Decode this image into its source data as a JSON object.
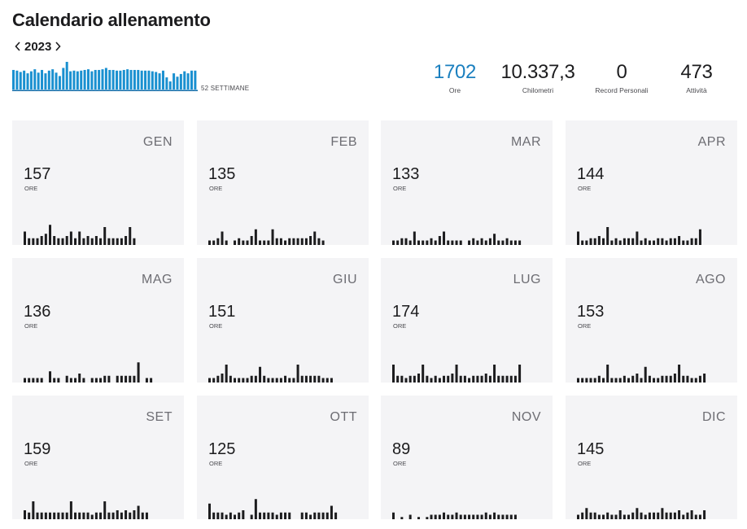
{
  "page": {
    "title": "Calendario allenamento"
  },
  "year_nav": {
    "year": "2023",
    "prev_icon": "chevron-left-icon",
    "next_icon": "chevron-right-icon"
  },
  "weekly_chart": {
    "label": "52 SETTIMANE",
    "color": "#1a90d0",
    "selected_color": "#0c6aa8",
    "values": [
      29,
      28,
      26,
      28,
      24,
      27,
      30,
      25,
      29,
      24,
      28,
      30,
      25,
      20,
      32,
      41,
      27,
      28,
      27,
      28,
      29,
      30,
      27,
      29,
      29,
      30,
      32,
      29,
      29,
      28,
      28,
      29,
      30,
      29,
      29,
      29,
      28,
      28,
      28,
      27,
      26,
      24,
      28,
      18,
      12,
      24,
      19,
      23,
      27,
      24,
      28,
      28
    ]
  },
  "stats": [
    {
      "value": "1702",
      "label": "Ore",
      "highlight": true
    },
    {
      "value": "10.337,3",
      "label": "Chilometri",
      "highlight": false
    },
    {
      "value": "0",
      "label": "Record Personali",
      "highlight": false
    },
    {
      "value": "473",
      "label": "Attività",
      "highlight": false
    }
  ],
  "months": [
    {
      "name": "GEN",
      "value": "157",
      "unit": "ORE",
      "bars": [
        6,
        3,
        3,
        3,
        4,
        5,
        9,
        4,
        3,
        3,
        4,
        6,
        3,
        6,
        3,
        4,
        3,
        4,
        3,
        8,
        3,
        3,
        3,
        3,
        4,
        8,
        3,
        0
      ]
    },
    {
      "name": "FEB",
      "value": "135",
      "unit": "ORE",
      "bars": [
        2,
        2,
        3,
        6,
        2,
        0,
        2,
        3,
        2,
        2,
        4,
        7,
        2,
        2,
        2,
        7,
        3,
        3,
        2,
        3,
        3,
        3,
        3,
        3,
        4,
        6,
        3,
        2
      ]
    },
    {
      "name": "MAR",
      "value": "133",
      "unit": "ORE",
      "bars": [
        2,
        2,
        3,
        3,
        2,
        6,
        2,
        2,
        2,
        3,
        2,
        4,
        6,
        2,
        2,
        2,
        2,
        0,
        2,
        3,
        2,
        3,
        2,
        3,
        5,
        2,
        2,
        3,
        2,
        2,
        2
      ]
    },
    {
      "name": "APR",
      "value": "144",
      "unit": "ORE",
      "bars": [
        6,
        2,
        2,
        3,
        3,
        4,
        3,
        8,
        2,
        3,
        2,
        3,
        3,
        3,
        6,
        2,
        3,
        2,
        2,
        3,
        3,
        2,
        3,
        3,
        4,
        2,
        2,
        3,
        3,
        7
      ]
    },
    {
      "name": "MAG",
      "value": "136",
      "unit": "ORE",
      "bars": [
        2,
        2,
        2,
        2,
        2,
        0,
        5,
        2,
        2,
        0,
        3,
        2,
        2,
        4,
        2,
        0,
        2,
        2,
        2,
        3,
        3,
        0,
        3,
        3,
        3,
        3,
        3,
        9,
        0,
        2,
        2
      ]
    },
    {
      "name": "GIU",
      "value": "151",
      "unit": "ORE",
      "bars": [
        2,
        2,
        3,
        4,
        8,
        3,
        2,
        2,
        2,
        2,
        3,
        3,
        7,
        3,
        2,
        2,
        2,
        2,
        3,
        2,
        2,
        8,
        3,
        3,
        3,
        3,
        3,
        2,
        2,
        2
      ]
    },
    {
      "name": "LUG",
      "value": "174",
      "unit": "ORE",
      "bars": [
        8,
        3,
        3,
        2,
        3,
        3,
        4,
        8,
        3,
        2,
        3,
        2,
        3,
        3,
        4,
        8,
        3,
        3,
        2,
        3,
        3,
        3,
        4,
        3,
        8,
        3,
        3,
        3,
        3,
        3,
        8
      ]
    },
    {
      "name": "AGO",
      "value": "153",
      "unit": "ORE",
      "bars": [
        2,
        2,
        2,
        2,
        2,
        3,
        2,
        8,
        2,
        2,
        2,
        3,
        2,
        3,
        4,
        2,
        7,
        3,
        2,
        2,
        3,
        3,
        3,
        4,
        8,
        3,
        3,
        2,
        2,
        3,
        4
      ]
    },
    {
      "name": "SET",
      "value": "159",
      "unit": "ORE",
      "bars": [
        4,
        3,
        8,
        3,
        3,
        3,
        3,
        3,
        3,
        3,
        3,
        8,
        3,
        3,
        3,
        3,
        2,
        3,
        3,
        8,
        3,
        3,
        4,
        3,
        4,
        3,
        4,
        6,
        3,
        3
      ]
    },
    {
      "name": "OTT",
      "value": "125",
      "unit": "ORE",
      "bars": [
        7,
        3,
        3,
        3,
        2,
        3,
        2,
        3,
        4,
        0,
        2,
        9,
        3,
        3,
        3,
        3,
        2,
        3,
        3,
        3,
        0,
        0,
        3,
        3,
        2,
        3,
        3,
        3,
        3,
        6,
        3
      ]
    },
    {
      "name": "NOV",
      "value": "89",
      "unit": "ORE",
      "bars": [
        3,
        0,
        1,
        0,
        2,
        0,
        1,
        0,
        1,
        2,
        2,
        2,
        3,
        2,
        2,
        3,
        2,
        2,
        2,
        2,
        2,
        2,
        3,
        2,
        3,
        2,
        2,
        2,
        2,
        2
      ]
    },
    {
      "name": "DIC",
      "value": "145",
      "unit": "ORE",
      "bars": [
        2,
        3,
        5,
        3,
        3,
        2,
        2,
        3,
        2,
        2,
        4,
        2,
        2,
        3,
        5,
        3,
        2,
        3,
        3,
        3,
        5,
        3,
        3,
        3,
        4,
        2,
        3,
        4,
        2,
        2,
        4
      ]
    }
  ]
}
